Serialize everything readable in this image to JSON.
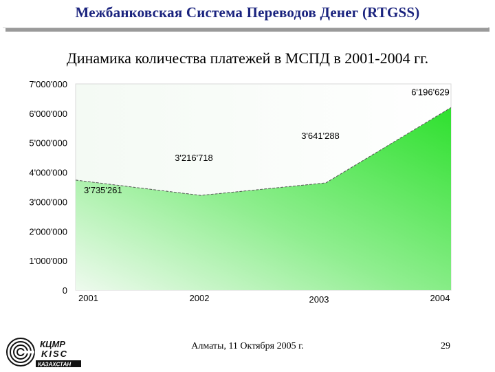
{
  "header": {
    "title": "Межбанковская Система Переводов Денег (RTGSS)"
  },
  "slide": {
    "title": "Динамика количества платежей в МСПД в 2001-2004 гг."
  },
  "footer": {
    "location_date": "Алматы, 11 Октября 2005 г.",
    "page_number": "29"
  },
  "logo": {
    "line1": "КЦМР",
    "line2": "KISC",
    "line3": "КАЗАХСТАН"
  },
  "colors": {
    "header_text": "#1a237e",
    "area_top": "#2ee02e",
    "area_bottom": "#eefaee",
    "line": "#555555"
  },
  "chart_data": {
    "type": "area",
    "categories": [
      "2001",
      "2002",
      "2003",
      "2004"
    ],
    "series": [
      {
        "values": [
          3735261,
          3216718,
          3641288,
          6196629
        ]
      }
    ],
    "data_labels": [
      "3'735'261",
      "3'216'718",
      "3'641'288",
      "6'196'629"
    ],
    "y_ticks": [
      0,
      1000000,
      2000000,
      3000000,
      4000000,
      5000000,
      6000000,
      7000000
    ],
    "y_tick_labels": [
      "0",
      "1'000'000",
      "2'000'000",
      "3'000'000",
      "4'000'000",
      "5'000'000",
      "6'000'000",
      "7'000'000"
    ],
    "ylim": [
      0,
      7000000
    ],
    "title": "",
    "xlabel": "",
    "ylabel": "",
    "grid": false,
    "legend": "none"
  }
}
